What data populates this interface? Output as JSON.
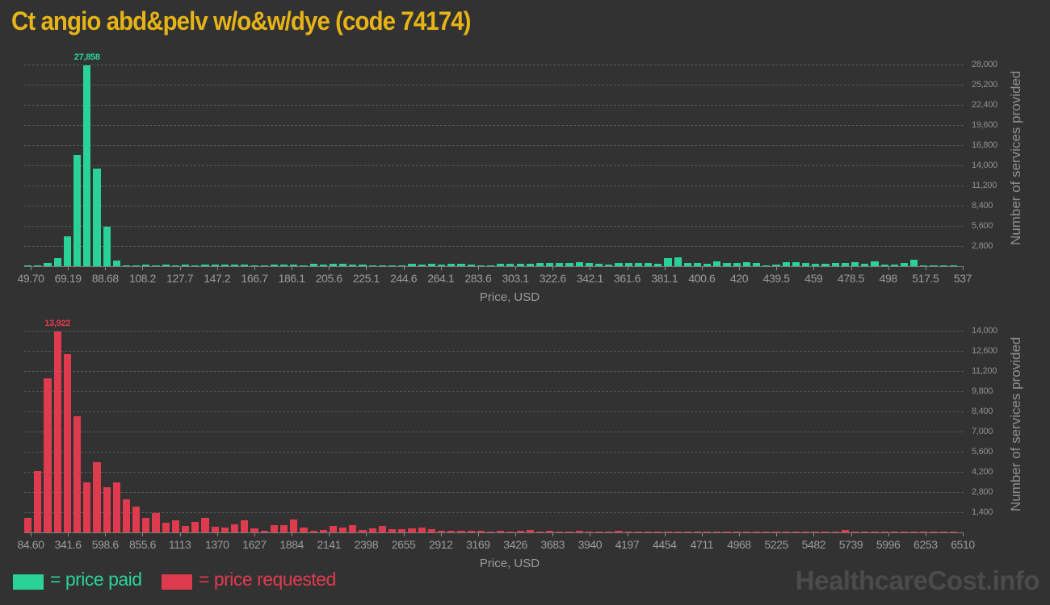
{
  "title": "Ct angio abd&pelv w/o&w/dye (code 74174)",
  "watermark": "HealthcareCost.info",
  "legend": {
    "paid_label": "= price paid",
    "requested_label": "= price requested"
  },
  "colors": {
    "background": "#323232",
    "paid": "#29d398",
    "requested": "#df3b4e",
    "title": "#e7b416",
    "axis_text": "#9b9b9b",
    "gridline": "#565656",
    "watermark": "#4b4b4b"
  },
  "chart_data": [
    {
      "type": "bar",
      "name": "price-paid-histogram",
      "series_label": "price paid",
      "color_key": "paid",
      "xlabel": "Price, USD",
      "ylabel": "Number of services provided",
      "x_range": [
        49.7,
        537
      ],
      "ylim": [
        0,
        29120
      ],
      "y_grid_step": 2800,
      "grid": true,
      "peak_label": "27,858",
      "peak_value": 27858,
      "x_tick_labels": [
        "49.70",
        "69.19",
        "88.68",
        "108.2",
        "127.7",
        "147.2",
        "166.7",
        "186.1",
        "205.6",
        "225.1",
        "244.6",
        "264.1",
        "283.6",
        "303.1",
        "322.6",
        "342.1",
        "361.6",
        "381.1",
        "400.6",
        "420",
        "439.5",
        "459",
        "478.5",
        "498",
        "517.5",
        "537"
      ],
      "y_tick_labels": [
        "2,800",
        "5,600",
        "8,400",
        "11,200",
        "14,000",
        "16,800",
        "19,600",
        "22,400",
        "25,200",
        "28,000"
      ],
      "values": [
        150,
        150,
        450,
        1100,
        4200,
        15500,
        27858,
        13500,
        5500,
        800,
        150,
        100,
        200,
        150,
        200,
        150,
        200,
        150,
        250,
        200,
        250,
        200,
        250,
        150,
        100,
        200,
        250,
        200,
        150,
        300,
        250,
        350,
        300,
        250,
        200,
        150,
        100,
        100,
        150,
        350,
        250,
        300,
        250,
        300,
        350,
        250,
        150,
        100,
        300,
        350,
        300,
        350,
        400,
        450,
        400,
        500,
        550,
        450,
        350,
        250,
        400,
        500,
        450,
        500,
        350,
        1150,
        1250,
        500,
        450,
        300,
        650,
        450,
        500,
        550,
        450,
        150,
        250,
        550,
        600,
        500,
        350,
        300,
        500,
        400,
        550,
        350,
        700,
        250,
        200,
        400,
        900,
        150,
        150,
        150,
        100
      ]
    },
    {
      "type": "bar",
      "name": "price-requested-histogram",
      "series_label": "price requested",
      "color_key": "requested",
      "xlabel": "Price, USD",
      "ylabel": "Number of services provided",
      "x_range": [
        84.6,
        6510
      ],
      "ylim": [
        0,
        14560
      ],
      "y_grid_step": 1400,
      "grid": true,
      "peak_label": "13,922",
      "peak_value": 13922,
      "x_tick_labels": [
        "84.60",
        "341.6",
        "598.6",
        "855.6",
        "1113",
        "1370",
        "1627",
        "1884",
        "2141",
        "2398",
        "2655",
        "2912",
        "3169",
        "3426",
        "3683",
        "3940",
        "4197",
        "4454",
        "4711",
        "4968",
        "5225",
        "5482",
        "5739",
        "5996",
        "6253",
        "6510"
      ],
      "y_tick_labels": [
        "1,400",
        "2,800",
        "4,200",
        "5,600",
        "7,000",
        "8,400",
        "9,800",
        "11,200",
        "12,600",
        "14,000"
      ],
      "values": [
        1000,
        4270,
        10700,
        13922,
        12350,
        8060,
        3460,
        4890,
        3120,
        3460,
        2280,
        1810,
        1030,
        1345,
        655,
        820,
        465,
        730,
        1030,
        390,
        355,
        540,
        820,
        280,
        90,
        500,
        500,
        880,
        355,
        90,
        190,
        470,
        340,
        520,
        190,
        280,
        470,
        225,
        225,
        260,
        340,
        225,
        120,
        100,
        130,
        100,
        110,
        60,
        110,
        60,
        110,
        150,
        60,
        90,
        60,
        40,
        90,
        40,
        60,
        40,
        90,
        40,
        60,
        30,
        40,
        60,
        40,
        30,
        60,
        40,
        30,
        40,
        30,
        40,
        30,
        40,
        60,
        30,
        40,
        30,
        40,
        30,
        40,
        150,
        40,
        30,
        40,
        30,
        40,
        30,
        60,
        30,
        40,
        30,
        60
      ]
    }
  ]
}
